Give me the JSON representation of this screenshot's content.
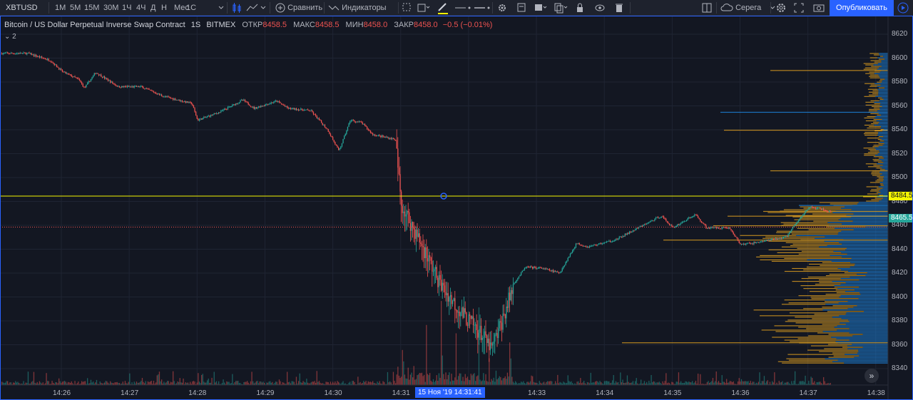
{
  "toolbar": {
    "symbol": "XBTUSD",
    "intervals": [
      "1М",
      "5М",
      "15М",
      "30М",
      "1Ч",
      "4Ч",
      "Д",
      "Н",
      "Мес",
      "1С"
    ],
    "active_interval": "1С",
    "compare_label": "Сравнить",
    "indicators_label": "Индикаторы",
    "layout_name": "Серега",
    "publish_label": "Опубликовать"
  },
  "legend": {
    "name": "Bitcoin / US Dollar Perpetual Inverse Swap Contract",
    "interval": "1S",
    "exchange": "BITMEX",
    "open_label": "ОТКР",
    "open": "8458.5",
    "high_label": "МАКС",
    "high": "8458.5",
    "low_label": "МИН",
    "low": "8458.0",
    "close_label": "ЗАКР",
    "close": "8458.0",
    "change": "−0.5 (−0.01%)",
    "hidden_count": "2"
  },
  "price_tags": {
    "crosshair": "8484.5",
    "last": "8465.5"
  },
  "time_tag": "15 Ноя '19   14:31:41",
  "colors": {
    "up": "#26a69a",
    "down": "#ef5350",
    "crosshair_line": "#f5f500",
    "accent": "#2962ff",
    "vp_up": "#1e88e5",
    "vp_down": "#e0a020"
  },
  "icons": [
    "candles-icon",
    "line-style-icon",
    "compare-plus-icon",
    "indicators-icon",
    "select-icon",
    "brush-icon",
    "line-width-icon",
    "gear-icon",
    "template-icon",
    "fill-icon",
    "copy-icon",
    "lock-icon",
    "eye-icon",
    "trash-icon",
    "layout-icon",
    "cloud-icon",
    "settings-icon",
    "fullscreen-icon",
    "camera-icon",
    "play-icon"
  ],
  "chart_data": {
    "type": "candlestick",
    "y_ticks": [
      8620,
      8600,
      8580,
      8560,
      8540,
      8520,
      8500,
      8480,
      8460,
      8440,
      8420,
      8400,
      8380,
      8360,
      8340
    ],
    "x_ticks": [
      "14:26",
      "14:27",
      "14:28",
      "14:29",
      "14:30",
      "14:31",
      "14:33",
      "14:34",
      "14:35",
      "14:36",
      "14:37",
      "14:38"
    ],
    "ylim": [
      8330,
      8630
    ],
    "price_path": [
      {
        "t": "14:25:30",
        "p": 8604
      },
      {
        "t": "14:25:50",
        "p": 8598
      },
      {
        "t": "14:26:00",
        "p": 8589
      },
      {
        "t": "14:26:15",
        "p": 8582
      },
      {
        "t": "14:26:20",
        "p": 8575
      },
      {
        "t": "14:26:30",
        "p": 8588
      },
      {
        "t": "14:26:50",
        "p": 8576
      },
      {
        "t": "14:27:10",
        "p": 8576
      },
      {
        "t": "14:27:30",
        "p": 8568
      },
      {
        "t": "14:27:55",
        "p": 8562
      },
      {
        "t": "14:28:00",
        "p": 8548
      },
      {
        "t": "14:28:20",
        "p": 8555
      },
      {
        "t": "14:28:40",
        "p": 8565
      },
      {
        "t": "14:28:50",
        "p": 8558
      },
      {
        "t": "14:29:10",
        "p": 8564
      },
      {
        "t": "14:29:20",
        "p": 8558
      },
      {
        "t": "14:29:40",
        "p": 8556
      },
      {
        "t": "14:29:55",
        "p": 8540
      },
      {
        "t": "14:30:05",
        "p": 8522
      },
      {
        "t": "14:30:15",
        "p": 8548
      },
      {
        "t": "14:30:25",
        "p": 8546
      },
      {
        "t": "14:30:35",
        "p": 8536
      },
      {
        "t": "14:30:55",
        "p": 8532
      },
      {
        "t": "14:31:00",
        "p": 8478
      },
      {
        "t": "14:31:20",
        "p": 8440
      },
      {
        "t": "14:31:35",
        "p": 8410
      },
      {
        "t": "14:31:55",
        "p": 8385
      },
      {
        "t": "14:32:10",
        "p": 8370
      },
      {
        "t": "14:32:20",
        "p": 8356
      },
      {
        "t": "14:32:30",
        "p": 8382
      },
      {
        "t": "14:32:40",
        "p": 8412
      },
      {
        "t": "14:32:50",
        "p": 8425
      },
      {
        "t": "14:33:05",
        "p": 8424
      },
      {
        "t": "14:33:20",
        "p": 8420
      },
      {
        "t": "14:33:35",
        "p": 8445
      },
      {
        "t": "14:33:45",
        "p": 8442
      },
      {
        "t": "14:34:10",
        "p": 8448
      },
      {
        "t": "14:34:30",
        "p": 8458
      },
      {
        "t": "14:34:50",
        "p": 8468
      },
      {
        "t": "14:35:00",
        "p": 8458
      },
      {
        "t": "14:35:20",
        "p": 8469
      },
      {
        "t": "14:35:30",
        "p": 8458
      },
      {
        "t": "14:35:50",
        "p": 8458
      },
      {
        "t": "14:36:00",
        "p": 8444
      },
      {
        "t": "14:36:10",
        "p": 8445
      },
      {
        "t": "14:36:40",
        "p": 8450
      },
      {
        "t": "14:37:00",
        "p": 8475
      },
      {
        "t": "14:37:10",
        "p": 8474
      },
      {
        "t": "14:37:20",
        "p": 8471
      }
    ],
    "crosshair_price": 8484.5,
    "last_price": 8465.5
  }
}
